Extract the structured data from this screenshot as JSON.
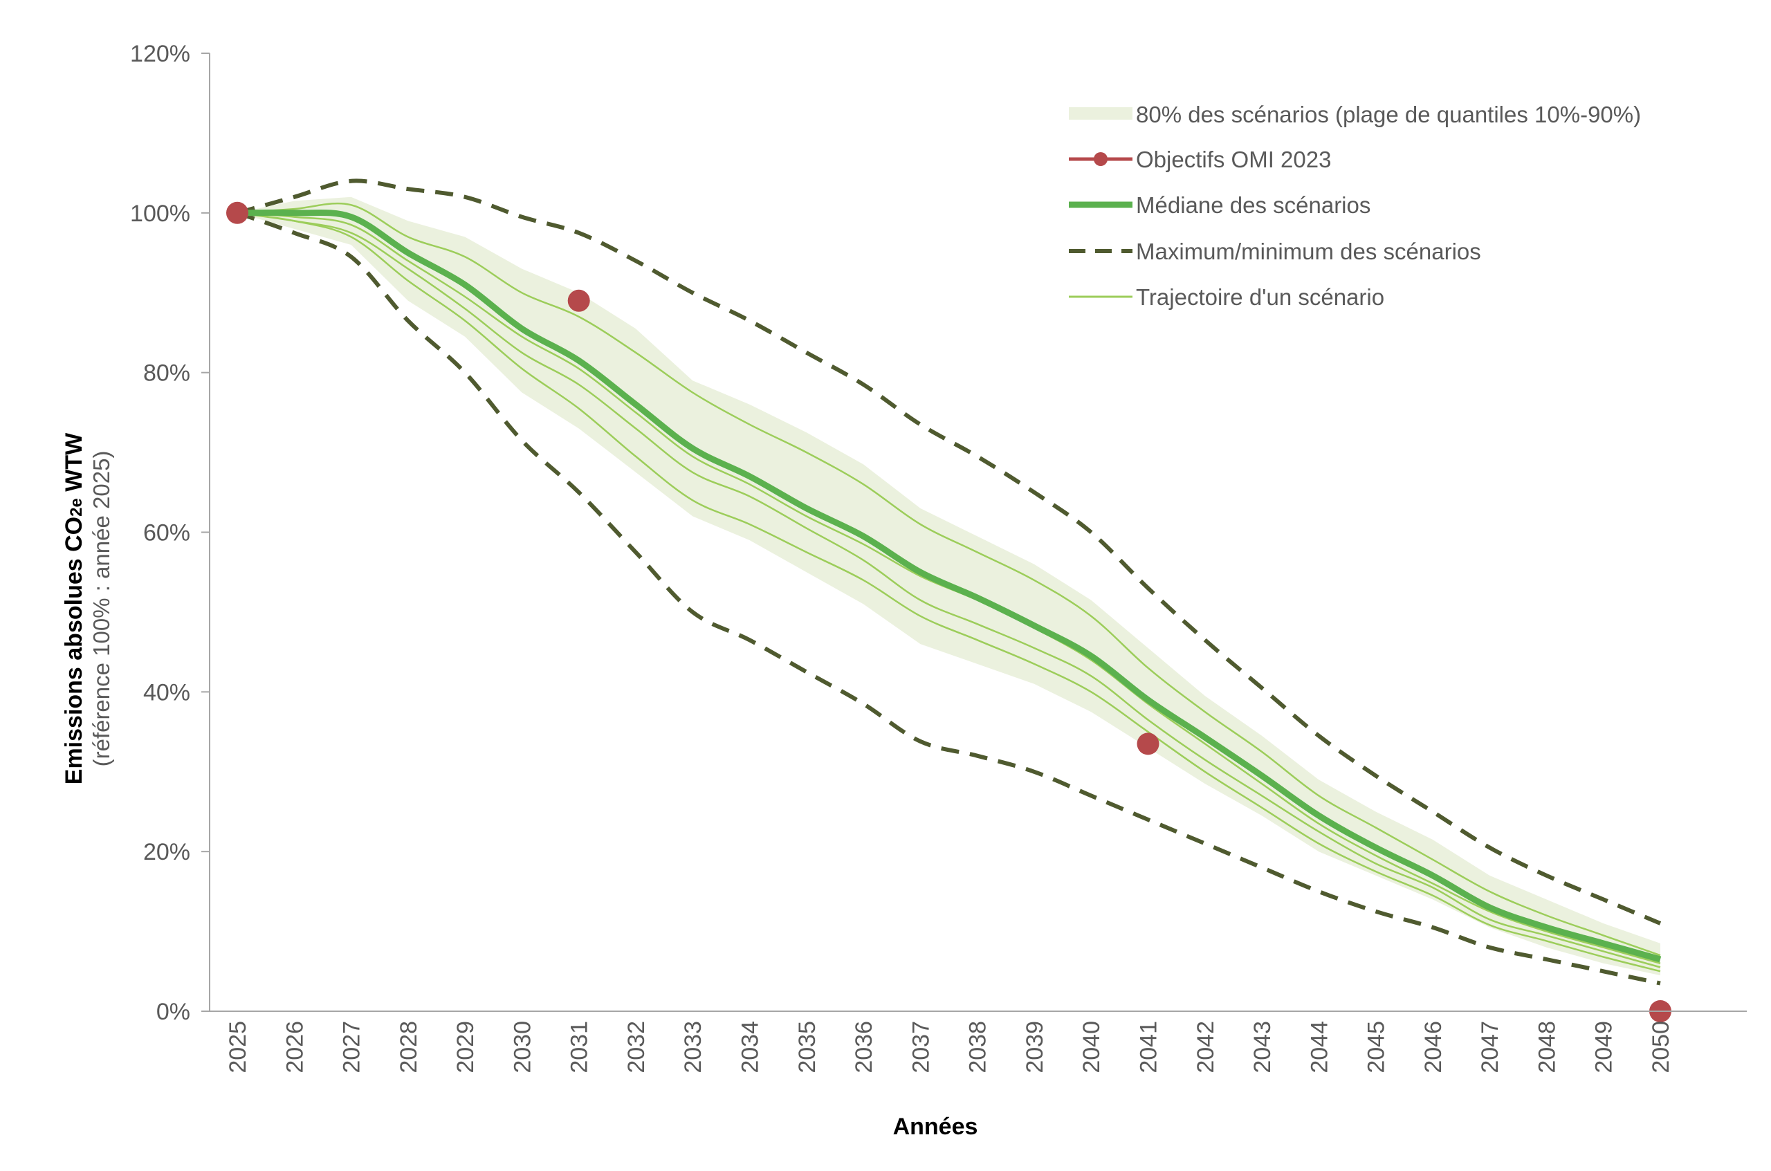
{
  "chart_data": {
    "type": "line",
    "title": "",
    "xlabel": "Années",
    "ylabel": "Emissions absolues CO2e WTW",
    "ylabel_main": "Emissions absolues CO",
    "ylabel_sub": "2e",
    "ylabel_end": " WTW",
    "ylabel_note": "(référence 100% : année 2025)",
    "x": [
      2025,
      2026,
      2027,
      2028,
      2029,
      2030,
      2031,
      2032,
      2033,
      2034,
      2035,
      2036,
      2037,
      2038,
      2039,
      2040,
      2041,
      2042,
      2043,
      2044,
      2045,
      2046,
      2047,
      2048,
      2049,
      2050
    ],
    "x_tick_labels": [
      "2025",
      "2026",
      "2027",
      "2028",
      "2029",
      "2030",
      "2031",
      "2032",
      "2033",
      "2034",
      "2035",
      "2036",
      "2037",
      "2038",
      "2039",
      "2040",
      "2041",
      "2042",
      "2043",
      "2044",
      "2045",
      "2046",
      "2047",
      "2048",
      "2049",
      "2050"
    ],
    "ylim": [
      0,
      120
    ],
    "y_ticks": [
      0,
      20,
      40,
      60,
      80,
      100,
      120
    ],
    "y_tick_labels": [
      "0%",
      "20%",
      "40%",
      "60%",
      "80%",
      "100%",
      "120%"
    ],
    "grid": false,
    "legend_position": "top-right",
    "legend": [
      {
        "key": "band",
        "label": "80% des scénarios (plage de quantiles 10%-90%)"
      },
      {
        "key": "targets",
        "label": "Objectifs OMI 2023"
      },
      {
        "key": "median",
        "label": "Médiane des scénarios"
      },
      {
        "key": "minmax",
        "label": "Maximum/minimum des scénarios"
      },
      {
        "key": "scenario",
        "label": "Trajectoire d'un scénario"
      }
    ],
    "colors": {
      "band": "#ebf1de",
      "target": "#b5494b",
      "median": "#5bb14e",
      "minmax": "#4f5a2f",
      "scenario": "#9ccd5a",
      "axis": "#a6a6a6"
    },
    "series": [
      {
        "key": "band_upper",
        "values": [
          100,
          101.5,
          102,
          99,
          97,
          93,
          90,
          85.5,
          79,
          76,
          72.5,
          68.5,
          63,
          59.5,
          56,
          51.5,
          45.5,
          39.5,
          34.5,
          29,
          25,
          21.5,
          17,
          14,
          11,
          8.5
        ]
      },
      {
        "key": "band_lower",
        "values": [
          100,
          98,
          96,
          89,
          84.5,
          77.5,
          73,
          67.5,
          62,
          59,
          55,
          51,
          46,
          43.5,
          41,
          37.5,
          33,
          28.5,
          24.5,
          20,
          17,
          14,
          10.5,
          8,
          6,
          4.5
        ]
      },
      {
        "key": "max",
        "values": [
          100,
          102,
          104,
          103,
          102,
          99.5,
          97.5,
          94,
          90,
          86.5,
          82.5,
          78.5,
          73.5,
          69.5,
          65,
          60,
          53,
          46.5,
          40.5,
          34.5,
          29.5,
          25,
          20.5,
          17,
          14,
          11
        ]
      },
      {
        "key": "min",
        "values": [
          100,
          97.5,
          94.5,
          86.5,
          80,
          71.5,
          65,
          57.5,
          50,
          46.5,
          42.5,
          38.5,
          33.8,
          32,
          30,
          27,
          24,
          21,
          18,
          15,
          12.5,
          10.5,
          8,
          6.5,
          5,
          3.5
        ]
      },
      {
        "key": "median",
        "values": [
          100,
          100,
          99.5,
          95,
          91,
          85.5,
          81.5,
          76,
          70.5,
          67,
          63,
          59.5,
          55,
          51.8,
          48.3,
          44.5,
          39,
          34.3,
          29.5,
          24.5,
          20.5,
          17,
          13,
          10.5,
          8.5,
          6.5
        ]
      },
      {
        "key": "scenario_1",
        "values": [
          100,
          100.5,
          101,
          97,
          94.5,
          90,
          87,
          82.5,
          77.5,
          73.5,
          70,
          66,
          61,
          57.5,
          54,
          49.5,
          43,
          37.5,
          32.5,
          27,
          23,
          19,
          15,
          12,
          9.5,
          7
        ]
      },
      {
        "key": "scenario_2",
        "values": [
          100,
          99.5,
          98.5,
          94,
          89.5,
          84.5,
          80.5,
          75,
          69.5,
          66,
          62,
          58.5,
          54.5,
          51.5,
          48,
          44,
          38.5,
          33.5,
          28.5,
          23.5,
          19.5,
          16,
          12.5,
          10,
          8,
          6
        ]
      },
      {
        "key": "scenario_3",
        "values": [
          100,
          99,
          97.5,
          93,
          88,
          82.5,
          78.5,
          73,
          67.5,
          64.5,
          60.5,
          56.5,
          51.5,
          48.5,
          45.5,
          42,
          36.5,
          31.5,
          27,
          22.5,
          18.5,
          15.5,
          11.5,
          9.5,
          7.5,
          5.5
        ]
      },
      {
        "key": "scenario_4",
        "values": [
          100,
          99,
          97,
          91.5,
          86.5,
          80.5,
          75.5,
          69.5,
          64,
          61,
          57.5,
          54,
          49.5,
          46.5,
          43.5,
          40,
          35,
          30,
          25.5,
          21,
          17.5,
          14.5,
          10.8,
          8.8,
          6.8,
          5
        ]
      },
      {
        "key": "targets",
        "values": [
          {
            "x": 2025,
            "y": 100
          },
          {
            "x": 2031,
            "y": 89
          },
          {
            "x": 2041,
            "y": 33.5
          },
          {
            "x": 2050,
            "y": 0
          }
        ]
      }
    ]
  }
}
